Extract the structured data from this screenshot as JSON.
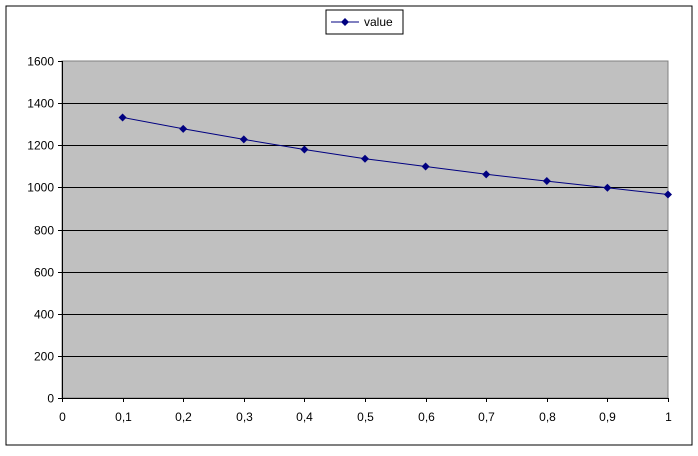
{
  "chart_data": {
    "type": "line",
    "title": "",
    "xlabel": "",
    "ylabel": "",
    "x": [
      0.1,
      0.2,
      0.3,
      0.4,
      0.5,
      0.6,
      0.7,
      0.8,
      0.9,
      1.0
    ],
    "series": [
      {
        "name": "value",
        "values": [
          1332,
          1278,
          1228,
          1180,
          1136,
          1099,
          1062,
          1030,
          998,
          966
        ],
        "color": "#000080"
      }
    ],
    "xlim": [
      0,
      1
    ],
    "ylim": [
      0,
      1600
    ],
    "x_ticks": [
      "0",
      "0,1",
      "0,2",
      "0,3",
      "0,4",
      "0,5",
      "0,6",
      "0,7",
      "0,8",
      "0,9",
      "1"
    ],
    "y_ticks": [
      "0",
      "200",
      "400",
      "600",
      "800",
      "1000",
      "1200",
      "1400",
      "1600"
    ],
    "grid": "horizontal",
    "legend_position": "top-center",
    "plot_background": "#c0c0c0",
    "gridline_color": "#000000",
    "marker": "diamond"
  }
}
